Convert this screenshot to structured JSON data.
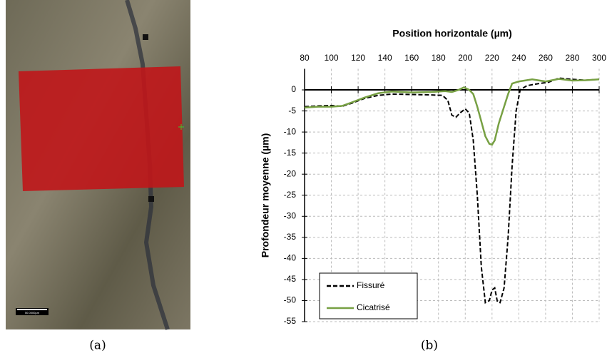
{
  "panel_a": {
    "scale_label": "50.0000µm",
    "caption": "(a)"
  },
  "panel_b": {
    "caption": "(b)"
  },
  "chart_data": {
    "type": "line",
    "title": "Position horizontale (µm)",
    "y_label": "Profondeur moyenne (µm)",
    "xlim": [
      80,
      300
    ],
    "xticks": [
      80,
      100,
      120,
      140,
      160,
      180,
      200,
      220,
      240,
      260,
      280,
      300
    ],
    "ylim": [
      -55,
      5
    ],
    "yticks": [
      0,
      -5,
      -10,
      -15,
      -20,
      -25,
      -30,
      -35,
      -40,
      -45,
      -50,
      -55
    ],
    "grid": true,
    "legend": "bottom-left",
    "series": [
      {
        "name": "Fissuré",
        "color": "#000000",
        "dash": true,
        "x": [
          80,
          90,
          100,
          108,
          115,
          125,
          135,
          145,
          160,
          175,
          183,
          187,
          190,
          193,
          196,
          200,
          203,
          206,
          209,
          212,
          215,
          218,
          220,
          222,
          224,
          226,
          229,
          232,
          235,
          238,
          241,
          246,
          255,
          262,
          270,
          280,
          290,
          300
        ],
        "values": [
          -4,
          -3.8,
          -3.7,
          -3.9,
          -3.2,
          -2,
          -1.3,
          -1,
          -1.1,
          -1.2,
          -1.3,
          -2.5,
          -6,
          -6.5,
          -5.5,
          -4.5,
          -5.5,
          -12,
          -25,
          -42,
          -50.5,
          -50,
          -47.5,
          -47,
          -50.3,
          -50.5,
          -47,
          -35,
          -18,
          -5,
          0,
          1,
          1.5,
          1.8,
          2.8,
          2.5,
          2.3,
          2.5
        ]
      },
      {
        "name": "Cicatrisé",
        "color": "#77a043",
        "dash": false,
        "x": [
          80,
          90,
          100,
          108,
          115,
          125,
          135,
          145,
          160,
          175,
          185,
          190,
          195,
          199,
          203,
          206,
          209,
          212,
          215,
          218,
          220,
          222,
          225,
          229,
          232,
          235,
          240,
          250,
          260,
          270,
          280,
          290,
          300
        ],
        "values": [
          -4.2,
          -4,
          -4,
          -3.8,
          -3,
          -1.8,
          -0.8,
          -0.4,
          -0.6,
          -0.5,
          -0.3,
          -0.5,
          0,
          0.6,
          0,
          -1,
          -4,
          -7.5,
          -11,
          -12.8,
          -13,
          -12,
          -8,
          -4,
          -1,
          1.5,
          2,
          2.5,
          2,
          2.6,
          2.2,
          2.3,
          2.5
        ]
      }
    ]
  }
}
